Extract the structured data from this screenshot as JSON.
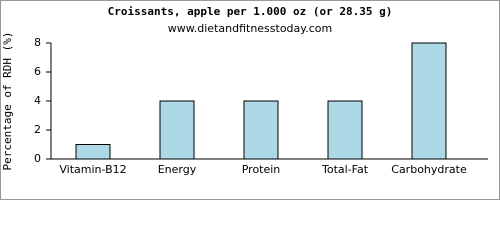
{
  "chart_data": {
    "type": "bar",
    "title": "Croissants, apple per 1.000 oz (or 28.35 g)",
    "subtitle": "www.dietandfitnesstoday.com",
    "y_label": "Percentage of RDH (%)",
    "categories": [
      "Vitamin-B12",
      "Energy",
      "Protein",
      "Total-Fat",
      "Carbohydrate"
    ],
    "values": [
      1,
      4,
      4,
      4,
      8
    ],
    "color": "#add8e6",
    "ylim": [
      0,
      8
    ],
    "yticks": [
      0,
      2,
      4,
      6,
      8
    ],
    "grid": false
  }
}
